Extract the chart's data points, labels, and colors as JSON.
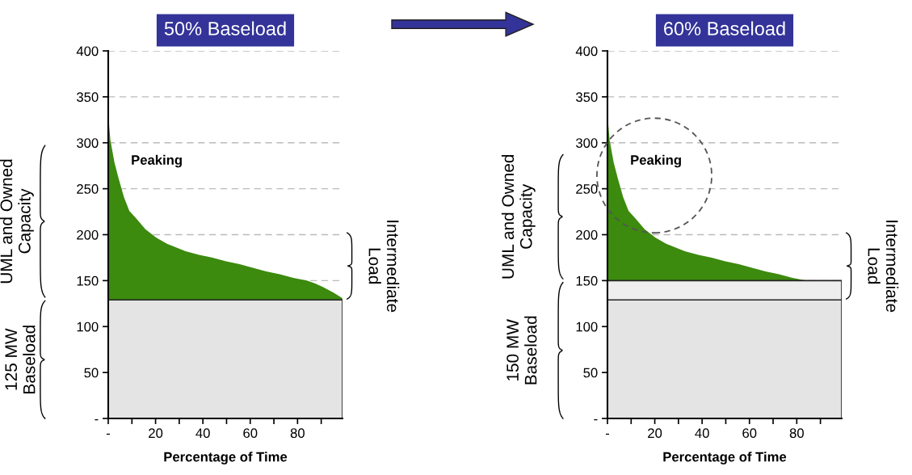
{
  "chart_data": [
    {
      "type": "area",
      "title": "50% Baseload",
      "xlabel": "Percentage of Time",
      "x": [
        0,
        0.9,
        2.6,
        4.3,
        6.6,
        8.9,
        11.7,
        15.7,
        20.2,
        24.8,
        32.7,
        38.4,
        44.1,
        49.8,
        55.5,
        61.1,
        66.8,
        72.5,
        78.2,
        83.9,
        87.3,
        90.7,
        95.2,
        98.9
      ],
      "series": [
        {
          "color": "#3c8a0e",
          "values": [
            330,
            303,
            279,
            262,
            241,
            226,
            218,
            206,
            197,
            190,
            182,
            178,
            175,
            171,
            168,
            164,
            160,
            157,
            153,
            150,
            147,
            143,
            137,
            131
          ]
        }
      ],
      "bands": [
        {
          "axis": "y",
          "from": 0,
          "to": 129,
          "color": "#e4e4e4"
        }
      ],
      "xlim": [
        0,
        99
      ],
      "ylim": [
        0,
        400
      ],
      "xticks": [
        {
          "value": 0,
          "label": "-"
        },
        {
          "value": 10,
          "label": null
        },
        20,
        {
          "value": 30,
          "label": null
        },
        40,
        {
          "value": 50,
          "label": null
        },
        60,
        {
          "value": 70,
          "label": null
        },
        80,
        {
          "value": 90,
          "label": null
        }
      ],
      "yticks": [
        {
          "value": 0,
          "label": "-"
        },
        50,
        100,
        150,
        200,
        250,
        300,
        350,
        400
      ],
      "grid": "y",
      "annotations": [
        "Peaking",
        "UML and Owned\nCapacity",
        "125 MW\nBaseload",
        "Intermediate\nLoad"
      ]
    },
    {
      "type": "area",
      "title": "60% Baseload",
      "xlabel": "Percentage of Time",
      "x": [
        0,
        0.9,
        2.6,
        4.3,
        6.6,
        8.9,
        11.7,
        15.7,
        20.2,
        24.8,
        32.7,
        38.4,
        44.1,
        49.8,
        55.5,
        61.1,
        66.8,
        72.5,
        78.2,
        83.9
      ],
      "series": [
        {
          "color": "#3c8a0e",
          "values": [
            330,
            303,
            279,
            262,
            241,
            226,
            218,
            206,
            197,
            190,
            182,
            178,
            175,
            171,
            168,
            164,
            160,
            157,
            153,
            150
          ]
        }
      ],
      "bands": [
        {
          "axis": "y",
          "from": 0,
          "to": 129,
          "color": "#e4e4e4"
        },
        {
          "axis": "y",
          "from": 129,
          "to": 150,
          "color": "#eeeeee"
        }
      ],
      "xlim": [
        0,
        99
      ],
      "ylim": [
        0,
        400
      ],
      "xticks": [
        {
          "value": 0,
          "label": "-"
        },
        {
          "value": 10,
          "label": null
        },
        20,
        {
          "value": 30,
          "label": null
        },
        40,
        {
          "value": 50,
          "label": null
        },
        60,
        {
          "value": 70,
          "label": null
        },
        80,
        {
          "value": 90,
          "label": null
        }
      ],
      "yticks": [
        {
          "value": 0,
          "label": "-"
        },
        50,
        100,
        150,
        200,
        250,
        300,
        350,
        400
      ],
      "grid": "y",
      "annotations": [
        "Peaking",
        "UML and Owned\nCapacity",
        "150 MW\nBaseload",
        "Intermediate\nLoad"
      ]
    }
  ]
}
